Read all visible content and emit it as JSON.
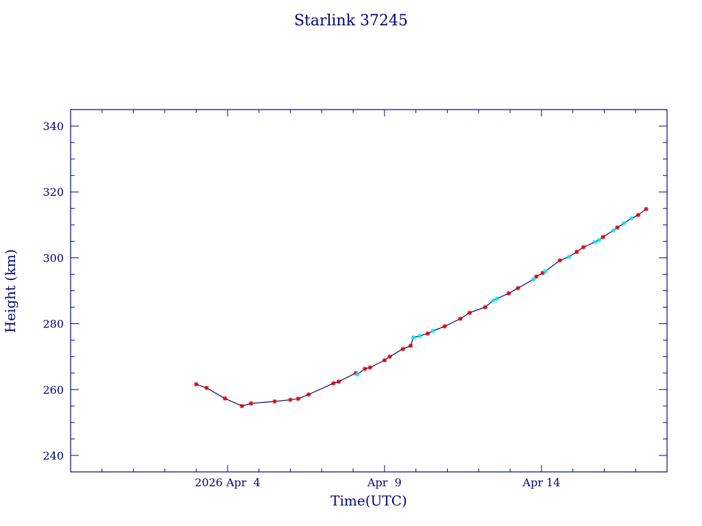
{
  "chart_data": {
    "type": "line",
    "title": "Starlink 37245",
    "xlabel": "Time(UTC)",
    "ylabel": "Height (km)",
    "ylim": [
      235,
      345
    ],
    "xlim": [
      "2026-03-30",
      "2026-04-18"
    ],
    "x_ticks": [
      {
        "date": "2026-04-04",
        "label": "2026 Apr  4"
      },
      {
        "date": "2026-04-09",
        "label": "Apr  9"
      },
      {
        "date": "2026-04-14",
        "label": "Apr 14"
      }
    ],
    "y_ticks": [
      240,
      260,
      280,
      300,
      320,
      340
    ],
    "grid": false,
    "colors": {
      "axis": "#00007a",
      "line": "#00007a",
      "marker": "#e00000",
      "highlight_marker": "#00e5ff"
    },
    "series": [
      {
        "marker": "star",
        "points": [
          [
            "2026-04-03 00:00",
            261.6
          ],
          [
            "2026-04-03 08:00",
            260.5
          ],
          [
            "2026-04-03 22:00",
            257.3
          ],
          [
            "2026-04-04 11:00",
            255.0
          ],
          [
            "2026-04-04 18:00",
            255.8
          ],
          [
            "2026-04-05 12:00",
            256.4
          ],
          [
            "2026-04-06 00:00",
            256.9
          ],
          [
            "2026-04-06 06:00",
            257.2
          ],
          [
            "2026-04-06 14:00",
            258.5
          ],
          [
            "2026-04-07 09:00",
            261.9
          ],
          [
            "2026-04-07 13:00",
            262.4
          ],
          [
            "2026-04-08 02:00",
            265.0
          ],
          [
            "2026-04-08 09:00",
            266.3
          ],
          [
            "2026-04-08 13:00",
            266.7
          ],
          [
            "2026-04-09 00:00",
            268.9
          ],
          [
            "2026-04-09 04:00",
            270.0
          ],
          [
            "2026-04-09 14:00",
            272.3
          ],
          [
            "2026-04-09 20:00",
            273.3
          ],
          [
            "2026-04-10 09:00",
            277.0
          ],
          [
            "2026-04-10 22:00",
            279.2
          ],
          [
            "2026-04-11 10:00",
            281.5
          ],
          [
            "2026-04-11 17:00",
            283.3
          ],
          [
            "2026-04-12 05:00",
            285.0
          ],
          [
            "2026-04-12 23:00",
            289.2
          ],
          [
            "2026-04-13 06:00",
            290.8
          ],
          [
            "2026-04-13 20:00",
            294.3
          ],
          [
            "2026-04-14 01:00",
            295.4
          ],
          [
            "2026-04-14 14:00",
            299.2
          ],
          [
            "2026-04-15 03:00",
            301.8
          ],
          [
            "2026-04-15 08:00",
            303.2
          ],
          [
            "2026-04-15 23:00",
            306.3
          ],
          [
            "2026-04-16 10:00",
            309.2
          ],
          [
            "2026-04-17 02:00",
            313.0
          ],
          [
            "2026-04-17 08:00",
            314.8
          ]
        ]
      },
      {
        "marker": "star",
        "color": "highlight_marker",
        "points": [
          [
            "2026-04-08 03:00",
            264.6
          ],
          [
            "2026-04-09 22:00",
            275.8
          ],
          [
            "2026-04-10 03:00",
            276.3
          ],
          [
            "2026-04-10 13:00",
            277.8
          ],
          [
            "2026-04-12 11:00",
            287.0
          ],
          [
            "2026-04-12 14:00",
            287.6
          ],
          [
            "2026-04-13 18:00",
            293.5
          ],
          [
            "2026-04-14 03:00",
            295.9
          ],
          [
            "2026-04-14 21:00",
            300.3
          ],
          [
            "2026-04-15 17:00",
            304.8
          ],
          [
            "2026-04-15 20:00",
            305.4
          ],
          [
            "2026-04-16 07:00",
            308.3
          ],
          [
            "2026-04-16 15:00",
            310.5
          ],
          [
            "2026-04-16 21:00",
            312.0
          ]
        ]
      }
    ]
  }
}
